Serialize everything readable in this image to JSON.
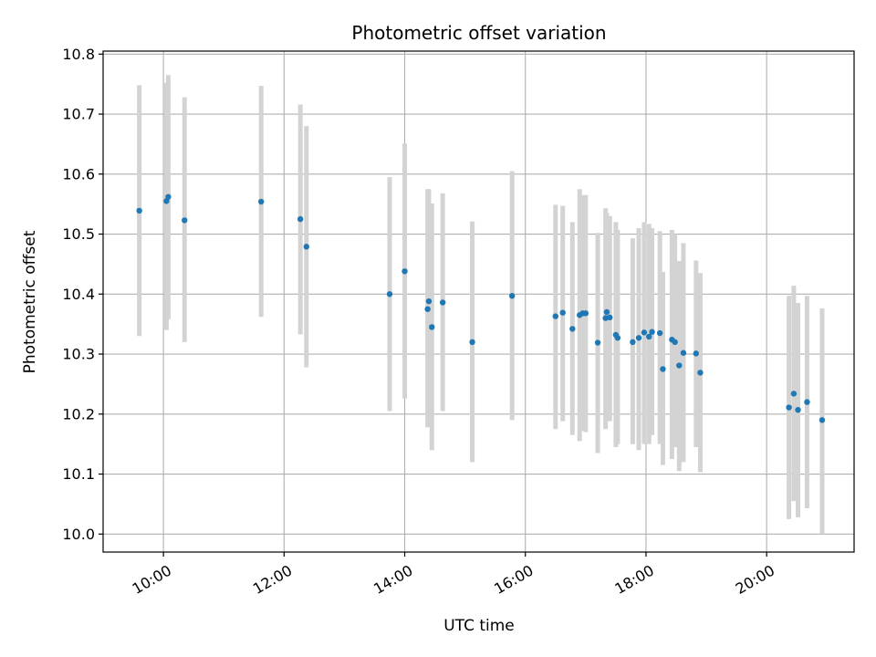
{
  "chart_data": {
    "type": "scatter",
    "title": "Photometric offset variation",
    "xlabel": "UTC time",
    "ylabel": "Photometric offset",
    "xlim": [
      9.0,
      21.45
    ],
    "ylim": [
      9.97,
      10.805
    ],
    "x_ticks": [
      10,
      12,
      14,
      16,
      18,
      20
    ],
    "x_tick_labels": [
      "10:00",
      "12:00",
      "14:00",
      "16:00",
      "18:00",
      "20:00"
    ],
    "y_ticks": [
      10.0,
      10.1,
      10.2,
      10.3,
      10.4,
      10.5,
      10.6,
      10.7,
      10.8
    ],
    "y_tick_labels": [
      "10.0",
      "10.1",
      "10.2",
      "10.3",
      "10.4",
      "10.5",
      "10.6",
      "10.7",
      "10.8"
    ],
    "grid": true,
    "colors": {
      "point": "#1f77b4",
      "errorbar": "#d3d3d3",
      "grid": "#b0b0b0"
    },
    "series": [
      {
        "x_hours": [
          9.6,
          10.05,
          10.08,
          10.35,
          11.62,
          12.27,
          12.37,
          13.75,
          14.0,
          14.38,
          14.4,
          14.45,
          14.63,
          15.12,
          15.78,
          16.5,
          16.62,
          16.78,
          16.9,
          16.95,
          17.0,
          17.2,
          17.33,
          17.35,
          17.4,
          17.5,
          17.53,
          17.78,
          17.88,
          17.97,
          18.05,
          18.1,
          18.23,
          18.28,
          18.43,
          18.48,
          18.55,
          18.62,
          18.83,
          18.9,
          20.37,
          20.45,
          20.52,
          20.67,
          20.92
        ],
        "y": [
          10.539,
          10.555,
          10.562,
          10.523,
          10.554,
          10.525,
          10.479,
          10.4,
          10.438,
          10.375,
          10.388,
          10.345,
          10.386,
          10.32,
          10.397,
          10.363,
          10.369,
          10.342,
          10.365,
          10.368,
          10.368,
          10.319,
          10.36,
          10.37,
          10.361,
          10.332,
          10.327,
          10.32,
          10.327,
          10.336,
          10.329,
          10.337,
          10.335,
          10.275,
          10.324,
          10.32,
          10.281,
          10.302,
          10.301,
          10.269,
          10.211,
          10.234,
          10.207,
          10.22,
          10.19
        ],
        "yerr_low": [
          10.33,
          10.34,
          10.358,
          10.32,
          10.362,
          10.333,
          10.278,
          10.205,
          10.226,
          10.178,
          10.178,
          10.14,
          10.205,
          10.12,
          10.19,
          10.175,
          10.188,
          10.165,
          10.155,
          10.172,
          10.17,
          10.135,
          10.175,
          10.19,
          10.188,
          10.145,
          10.15,
          10.15,
          10.14,
          10.15,
          10.15,
          10.165,
          10.15,
          10.115,
          10.125,
          10.145,
          10.105,
          10.12,
          10.145,
          10.103,
          10.025,
          10.055,
          10.028,
          10.043,
          10.0
        ],
        "yerr_high": [
          10.748,
          10.752,
          10.765,
          10.728,
          10.747,
          10.716,
          10.68,
          10.595,
          10.651,
          10.575,
          10.575,
          10.551,
          10.568,
          10.521,
          10.605,
          10.549,
          10.547,
          10.52,
          10.575,
          10.565,
          10.565,
          10.502,
          10.543,
          10.535,
          10.53,
          10.52,
          10.507,
          10.493,
          10.51,
          10.52,
          10.517,
          10.51,
          10.505,
          10.437,
          10.507,
          10.5,
          10.455,
          10.485,
          10.456,
          10.435,
          10.397,
          10.414,
          10.385,
          10.397,
          10.376
        ]
      }
    ]
  }
}
